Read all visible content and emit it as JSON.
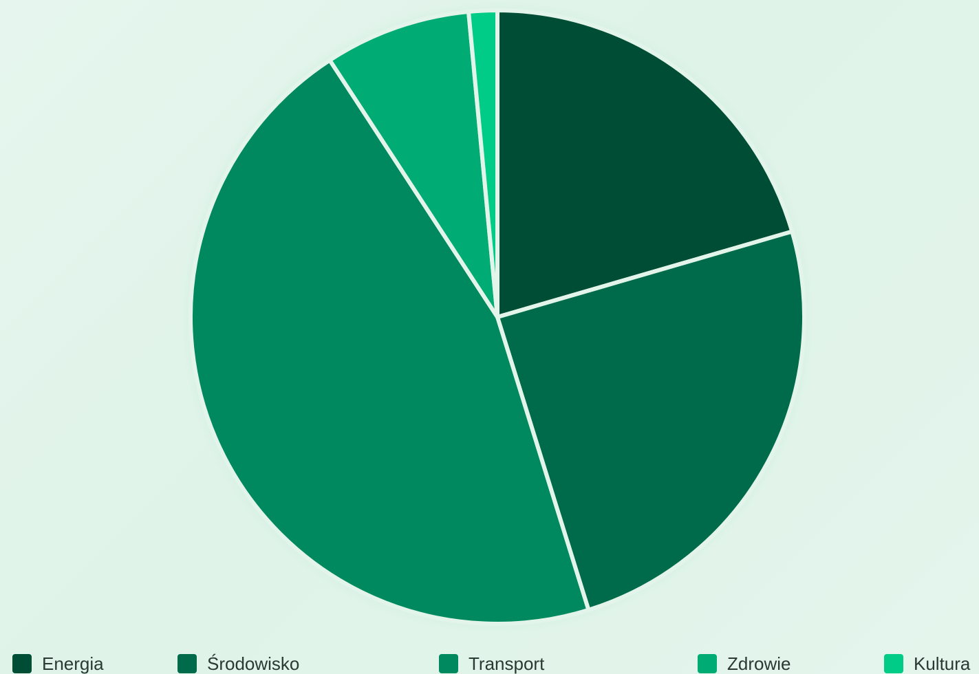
{
  "chart_data": {
    "type": "pie",
    "categories": [
      "Energia",
      "Środowisko",
      "Transport",
      "Zdrowie",
      "Kultura"
    ],
    "values": [
      20.5,
      24.7,
      45.6,
      7.7,
      1.5
    ],
    "colors": [
      "#004d36",
      "#006b4a",
      "#00895e",
      "#00ab74",
      "#00cc88"
    ],
    "legend_position": "bottom",
    "title": ""
  }
}
